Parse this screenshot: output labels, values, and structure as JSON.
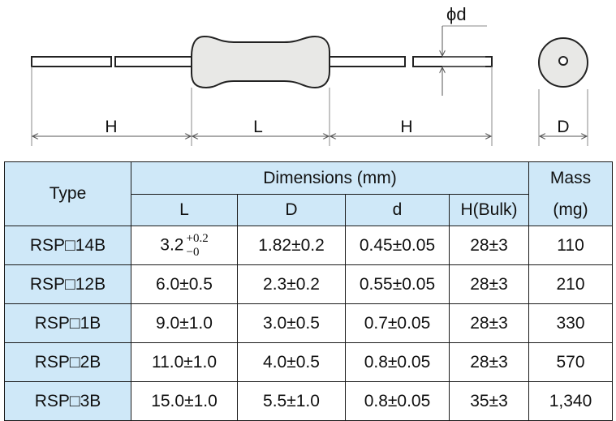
{
  "drawing": {
    "labels": {
      "h_left": "H",
      "l": "L",
      "h_right": "H",
      "d_diameter": "D",
      "lead_diameter": "ϕd"
    }
  },
  "table": {
    "headers": {
      "type": "Type",
      "dimensions": "Dimensions (mm)",
      "mass_line1": "Mass",
      "mass_line2": "(mg)",
      "col_l": "L",
      "col_d": "D",
      "col_dd": "d",
      "col_h": "H(Bulk)"
    },
    "rows": [
      {
        "type": "RSP□14B",
        "l_main": "3.2",
        "l_tol_plus": "+0.2",
        "l_tol_minus": "−0",
        "d": "1.82±0.2",
        "dd": "0.45±0.05",
        "h": "28±3",
        "mass": "110"
      },
      {
        "type": "RSP□12B",
        "l": "6.0±0.5",
        "d": "2.3±0.2",
        "dd": "0.55±0.05",
        "h": "28±3",
        "mass": "210"
      },
      {
        "type": "RSP□1B",
        "l": "9.0±1.0",
        "d": "3.0±0.5",
        "dd": "0.7±0.05",
        "h": "28±3",
        "mass": "330"
      },
      {
        "type": "RSP□2B",
        "l": "11.0±1.0",
        "d": "4.0±0.5",
        "dd": "0.8±0.05",
        "h": "28±3",
        "mass": "570"
      },
      {
        "type": "RSP□3B",
        "l": "15.0±1.0",
        "d": "5.5±1.0",
        "dd": "0.8±0.05",
        "h": "35±3",
        "mass": "1,340"
      }
    ]
  },
  "colors": {
    "header_bg": "#cfe8f8",
    "body_fill": "#e8e8e6",
    "line": "#1a1a1a"
  }
}
